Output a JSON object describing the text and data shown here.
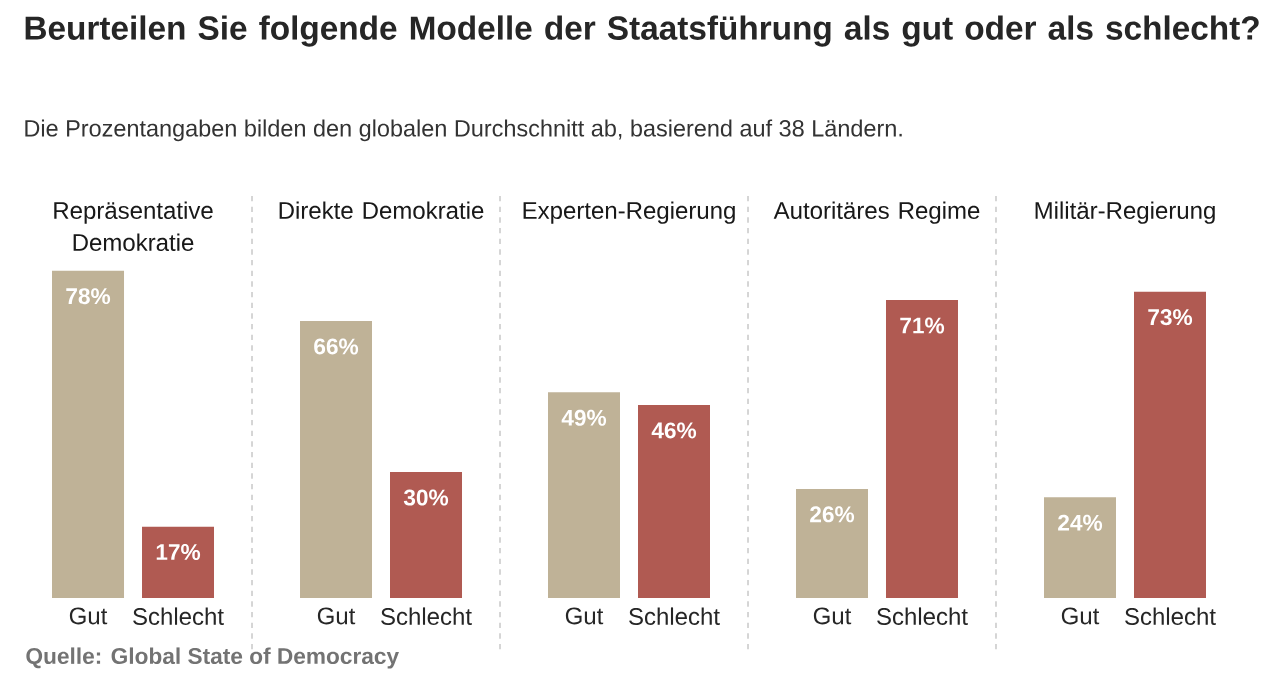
{
  "chart_data": [
    {
      "type": "other",
      "title": "Beurteilen Sie folgende Modelle der Staatsführung als gut oder als schlecht?",
      "subtitle": "Die Prozentangaben bilden den globalen Durchschnitt ab, basierend auf 38 Ländern.",
      "annotations": [
        "Quelle: Global State of Democracy"
      ]
    },
    {
      "type": "bar",
      "title": "Repräsentative Demokratie",
      "categories": [
        "Gut",
        "Schlecht"
      ],
      "values": [
        78,
        17
      ],
      "colors": [
        "#bfb297",
        "#b05a52"
      ],
      "value_labels": [
        "78%",
        "17%"
      ]
    },
    {
      "type": "bar",
      "title": "Direkte Demokratie",
      "categories": [
        "Gut",
        "Schlecht"
      ],
      "values": [
        66,
        30
      ],
      "colors": [
        "#bfb297",
        "#b05a52"
      ],
      "value_labels": [
        "66%",
        "30%"
      ]
    },
    {
      "type": "bar",
      "title": "Experten-Regierung",
      "categories": [
        "Gut",
        "Schlecht"
      ],
      "values": [
        49,
        46
      ],
      "colors": [
        "#bfb297",
        "#b05a52"
      ],
      "value_labels": [
        "49%",
        "46%"
      ]
    },
    {
      "type": "bar",
      "title": "Autoritäres Regime",
      "categories": [
        "Gut",
        "Schlecht"
      ],
      "values": [
        26,
        71
      ],
      "colors": [
        "#bfb297",
        "#b05a52"
      ],
      "value_labels": [
        "26%",
        "71%"
      ]
    },
    {
      "type": "bar",
      "title": "Militär-Regierung",
      "categories": [
        "Gut",
        "Schlecht"
      ],
      "values": [
        24,
        73
      ],
      "colors": [
        "#bfb297",
        "#b05a52"
      ],
      "value_labels": [
        "24%",
        "73%"
      ]
    }
  ]
}
